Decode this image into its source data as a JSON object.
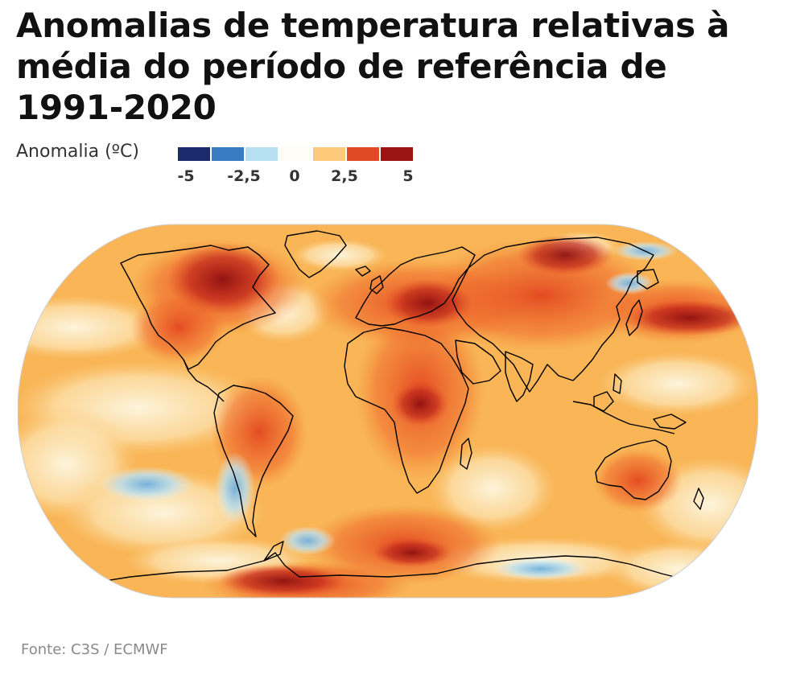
{
  "title": "Anomalias de temperatura relativas à média do período de referência de 1991-2020",
  "legend": {
    "label": "Anomalia (ºC)",
    "colors": [
      "#1b2a6b",
      "#3a7cc4",
      "#b7dff2",
      "#fdfcf5",
      "#fbc979",
      "#e04a24",
      "#9b1414"
    ],
    "ticks": [
      "-5",
      "-2,5",
      "0",
      "2,5",
      "5"
    ]
  },
  "map": {
    "projection": "Robinson",
    "ocean_color": "#f9b556",
    "coastline_color": "#000000"
  },
  "source": "Fonte: C3S / ECMWF"
}
